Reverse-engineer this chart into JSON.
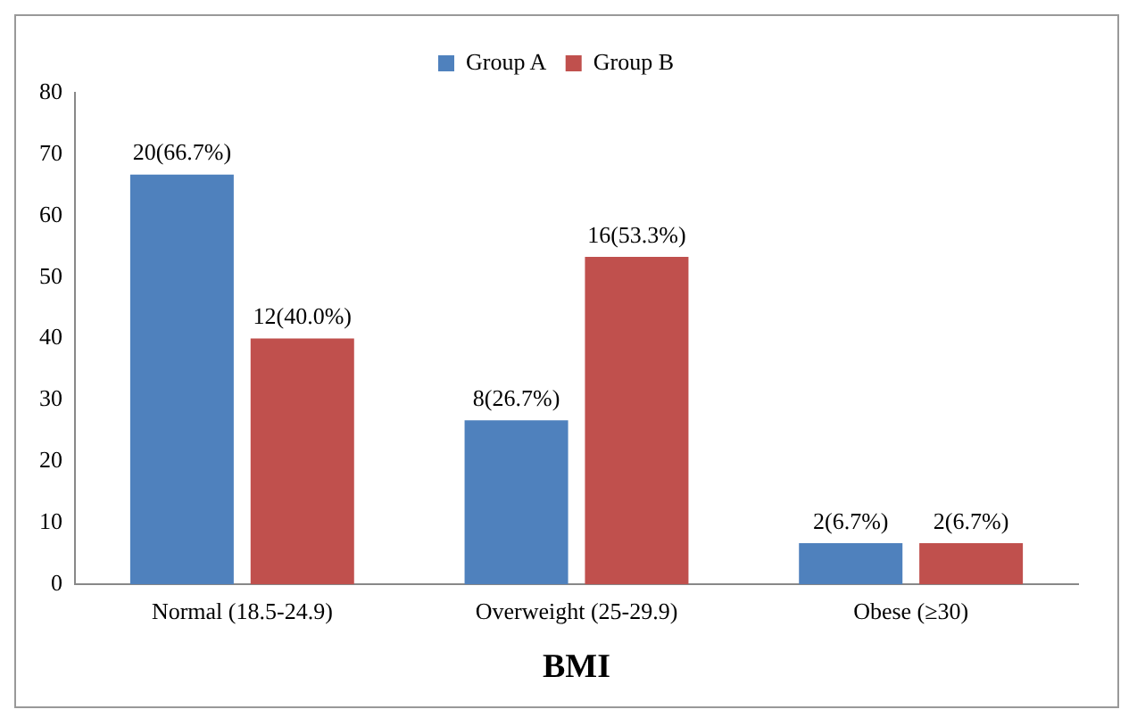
{
  "chart_data": {
    "type": "bar",
    "xlabel": "BMI",
    "categories": [
      "Normal (18.5-24.9)",
      "Overweight (25-29.9)",
      "Obese (≥30)"
    ],
    "series": [
      {
        "name": "Group A",
        "color": "#4f81bd",
        "values": [
          66.7,
          26.7,
          6.7
        ],
        "value_labels": [
          "20(66.7%)",
          "8(26.7%)",
          "2(6.7%)"
        ]
      },
      {
        "name": "Group B",
        "color": "#c0504d",
        "values": [
          40.0,
          53.3,
          6.7
        ],
        "value_labels": [
          "12(40.0%)",
          "16(53.3%)",
          "2(6.7%)"
        ]
      }
    ],
    "ylim": [
      0,
      80
    ],
    "yticks": [
      0,
      10,
      20,
      30,
      40,
      50,
      60,
      70,
      80
    ],
    "grid": false,
    "legend": "top"
  }
}
